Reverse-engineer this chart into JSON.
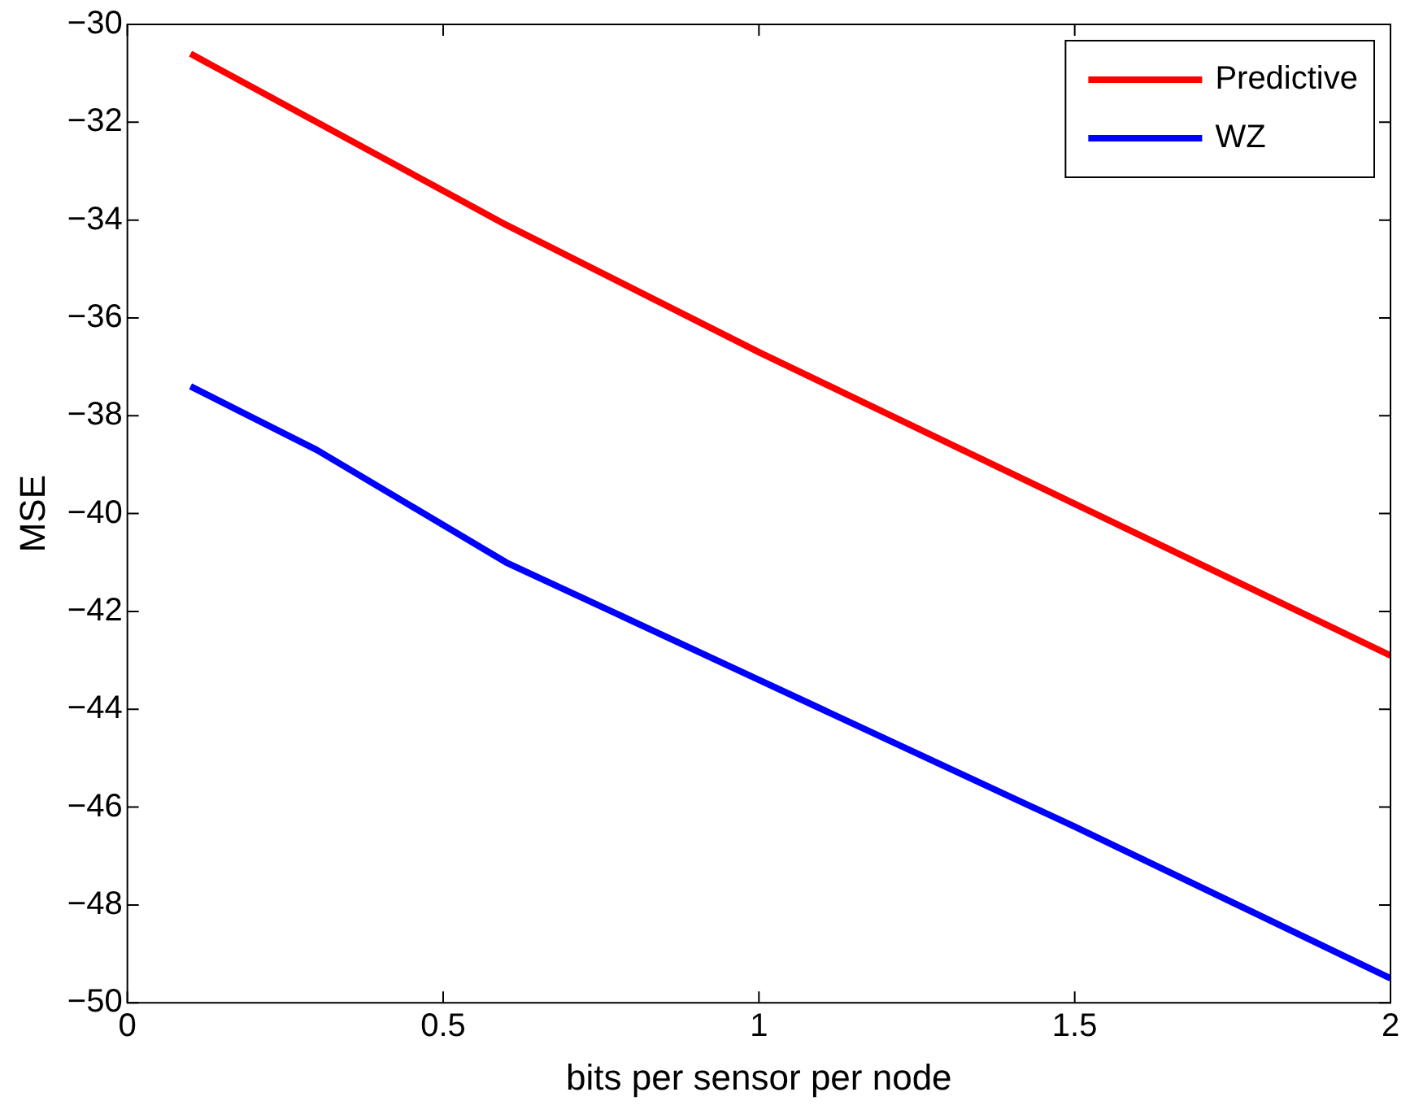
{
  "chart_data": {
    "type": "line",
    "xlabel": "bits per sensor per node",
    "ylabel": "MSE",
    "x": [
      0.1,
      0.3,
      0.6,
      1,
      1.5,
      2
    ],
    "series": [
      {
        "name": "Predictive",
        "color": "#ff0000",
        "values": [
          -30.6,
          -32.0,
          -34.1,
          -36.7,
          -39.8,
          -42.9
        ]
      },
      {
        "name": "WZ",
        "color": "#0000ff",
        "values": [
          -37.4,
          -38.7,
          -41.0,
          -43.4,
          -46.4,
          -49.5
        ]
      }
    ],
    "xlim": [
      0,
      2
    ],
    "xticks": [
      0,
      0.5,
      1,
      1.5,
      2
    ],
    "ylim": [
      -50,
      -30
    ],
    "yticks": [
      -50,
      -48,
      -46,
      -44,
      -42,
      -40,
      -38,
      -36,
      -34,
      -32,
      -30
    ],
    "legend": "top right",
    "grid": false,
    "marker": "none",
    "line_style": "solid"
  }
}
